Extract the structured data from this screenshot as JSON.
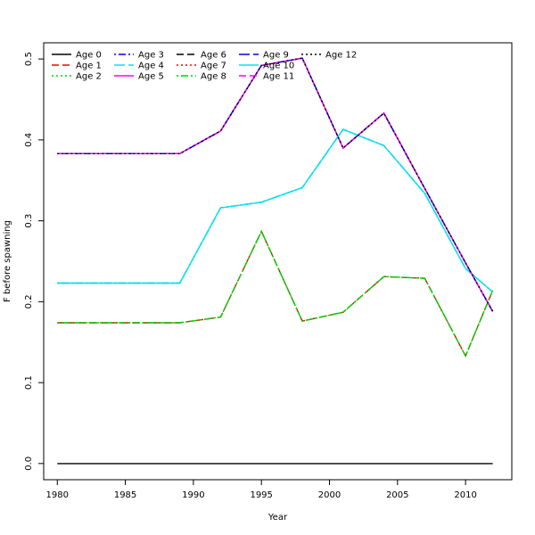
{
  "chart_data": {
    "type": "line",
    "xlabel": "Year",
    "ylabel": "F before spawning",
    "xlim": [
      1979,
      2013.4
    ],
    "ylim": [
      -0.02,
      0.52
    ],
    "xticks": [
      1980,
      1985,
      1990,
      1995,
      2000,
      2005,
      2010
    ],
    "yticks": [
      0.0,
      0.1,
      0.2,
      0.3,
      0.4,
      0.5
    ],
    "legend_position": "top-left",
    "grid": false,
    "x": [
      1980,
      1983,
      1986,
      1989,
      1992,
      1995,
      1998,
      2001,
      2004,
      2007,
      2010,
      2012
    ],
    "series": [
      {
        "name": "Age 0",
        "color": "#000000",
        "dash": "solid",
        "values": [
          0,
          0,
          0,
          0,
          0,
          0,
          0,
          0,
          0,
          0,
          0,
          0
        ]
      },
      {
        "name": "Age 1",
        "color": "#ff0000",
        "dash": "dashed",
        "values": [
          0.174,
          0.174,
          0.174,
          0.174,
          0.181,
          0.287,
          0.176,
          0.187,
          0.231,
          0.229,
          0.133,
          0.214
        ]
      },
      {
        "name": "Age 2",
        "color": "#00cd00",
        "dash": "dotted",
        "values": [
          0.174,
          0.174,
          0.174,
          0.174,
          0.181,
          0.287,
          0.176,
          0.187,
          0.231,
          0.229,
          0.133,
          0.214
        ]
      },
      {
        "name": "Age 3",
        "color": "#0000ff",
        "dash": "dotdash",
        "values": [
          0.223,
          0.223,
          0.223,
          0.223,
          0.316,
          0.323,
          0.341,
          0.413,
          0.393,
          0.334,
          0.241,
          0.212
        ]
      },
      {
        "name": "Age 4",
        "color": "#00e5ee",
        "dash": "longdash",
        "values": [
          0.223,
          0.223,
          0.223,
          0.223,
          0.316,
          0.323,
          0.341,
          0.413,
          0.393,
          0.334,
          0.241,
          0.212
        ]
      },
      {
        "name": "Age 5",
        "color": "#ff00ff",
        "dash": "solid",
        "values": [
          0.383,
          0.383,
          0.383,
          0.383,
          0.411,
          0.492,
          0.501,
          0.39,
          0.433,
          0.34,
          0.248,
          0.188
        ]
      },
      {
        "name": "Age 6",
        "color": "#000000",
        "dash": "dashed",
        "values": [
          0.383,
          0.383,
          0.383,
          0.383,
          0.411,
          0.492,
          0.501,
          0.39,
          0.433,
          0.34,
          0.248,
          0.188
        ]
      },
      {
        "name": "Age 7",
        "color": "#ff0000",
        "dash": "dotted",
        "values": [
          0.383,
          0.383,
          0.383,
          0.383,
          0.411,
          0.492,
          0.501,
          0.39,
          0.433,
          0.34,
          0.248,
          0.188
        ]
      },
      {
        "name": "Age 8",
        "color": "#00cd00",
        "dash": "dotdash",
        "values": [
          0.174,
          0.174,
          0.174,
          0.174,
          0.181,
          0.287,
          0.176,
          0.187,
          0.231,
          0.229,
          0.133,
          0.214
        ]
      },
      {
        "name": "Age 9",
        "color": "#0000ff",
        "dash": "longdash",
        "values": [
          0.383,
          0.383,
          0.383,
          0.383,
          0.411,
          0.492,
          0.501,
          0.39,
          0.433,
          0.34,
          0.248,
          0.188
        ]
      },
      {
        "name": "Age 10",
        "color": "#00e5ee",
        "dash": "solid",
        "values": [
          0.223,
          0.223,
          0.223,
          0.223,
          0.316,
          0.323,
          0.341,
          0.413,
          0.393,
          0.334,
          0.241,
          0.212
        ]
      },
      {
        "name": "Age 11",
        "color": "#ff00ff",
        "dash": "dashed",
        "values": [
          0.383,
          0.383,
          0.383,
          0.383,
          0.411,
          0.492,
          0.501,
          0.39,
          0.433,
          0.34,
          0.248,
          0.188
        ]
      },
      {
        "name": "Age 12",
        "color": "#000000",
        "dash": "dotted",
        "values": [
          0.383,
          0.383,
          0.383,
          0.383,
          0.411,
          0.492,
          0.501,
          0.39,
          0.433,
          0.34,
          0.248,
          0.188
        ]
      }
    ]
  }
}
